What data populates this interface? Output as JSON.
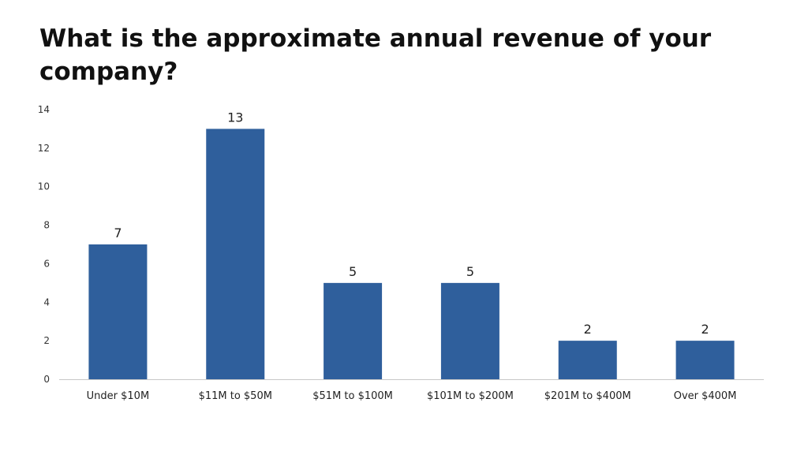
{
  "chart_data": {
    "type": "bar",
    "title": "What is the approximate annual revenue of your company?",
    "xlabel": "",
    "ylabel": "",
    "categories": [
      "Under $10M",
      "$11M to $50M",
      "$51M to $100M",
      "$101M to $200M",
      "$201M to $400M",
      "Over $400M"
    ],
    "values": [
      7,
      13,
      5,
      5,
      2,
      2
    ],
    "data_labels": [
      "7",
      "13",
      "5",
      "5",
      "2",
      "2"
    ],
    "ylim": [
      0,
      14
    ],
    "yticks": [
      0,
      2,
      4,
      6,
      8,
      10,
      12,
      14
    ],
    "grid": false,
    "legend": "none",
    "bar_color": "#2f5f9c"
  }
}
